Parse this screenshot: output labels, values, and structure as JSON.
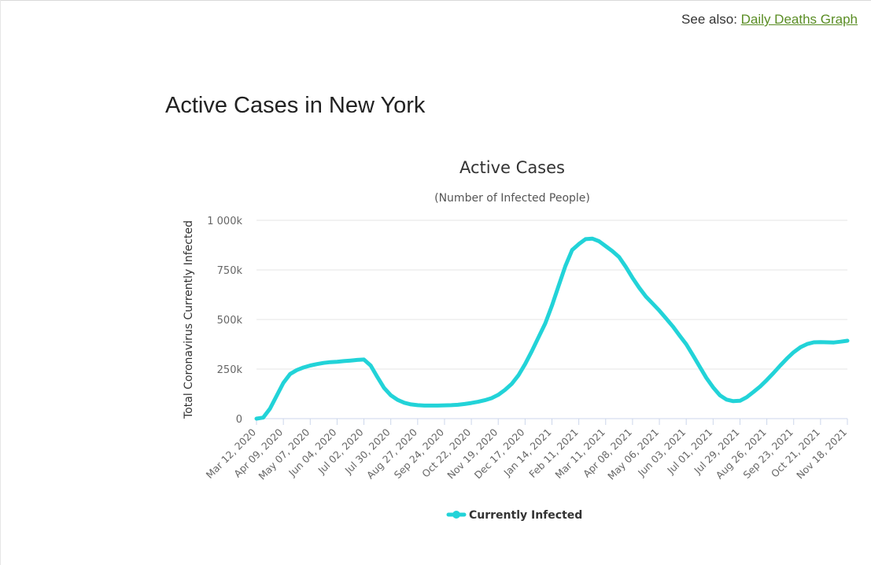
{
  "header": {
    "see_also_prefix": "See also:",
    "see_also_link": "Daily Deaths Graph",
    "link_color": "#5a8d24"
  },
  "page": {
    "title": "Active Cases in New York"
  },
  "chart_data": {
    "type": "line",
    "title": "Active Cases",
    "subtitle": "(Number of Infected People)",
    "xlabel": "",
    "ylabel": "Total Coronavirus Currently Infected",
    "ylim": [
      0,
      1000000
    ],
    "yticks": [
      0,
      250000,
      500000,
      750000,
      1000000
    ],
    "ytick_labels": [
      "0",
      "250k",
      "500k",
      "750k",
      "1 000k"
    ],
    "xticks": [
      "Mar 12, 2020",
      "Apr 09, 2020",
      "May 07, 2020",
      "Jun 04, 2020",
      "Jul 02, 2020",
      "Jul 30, 2020",
      "Aug 27, 2020",
      "Sep 24, 2020",
      "Oct 22, 2020",
      "Nov 19, 2020",
      "Dec 17, 2020",
      "Jan 14, 2021",
      "Feb 11, 2021",
      "Mar 11, 2021",
      "Apr 08, 2021",
      "May 06, 2021",
      "Jun 03, 2021",
      "Jul 01, 2021",
      "Jul 29, 2021",
      "Aug 26, 2021",
      "Sep 23, 2021",
      "Oct 21, 2021",
      "Nov 18, 2021"
    ],
    "grid": true,
    "legend_position": "bottom-center",
    "series": [
      {
        "name": "Currently Infected",
        "color": "#22d3d8",
        "x": [
          "Mar 12, 2020",
          "Mar 19, 2020",
          "Mar 26, 2020",
          "Apr 02, 2020",
          "Apr 09, 2020",
          "Apr 16, 2020",
          "Apr 23, 2020",
          "Apr 30, 2020",
          "May 07, 2020",
          "May 14, 2020",
          "May 21, 2020",
          "May 28, 2020",
          "Jun 04, 2020",
          "Jun 11, 2020",
          "Jun 18, 2020",
          "Jun 25, 2020",
          "Jul 02, 2020",
          "Jul 09, 2020",
          "Jul 16, 2020",
          "Jul 23, 2020",
          "Jul 30, 2020",
          "Aug 06, 2020",
          "Aug 13, 2020",
          "Aug 20, 2020",
          "Aug 27, 2020",
          "Sep 03, 2020",
          "Sep 10, 2020",
          "Sep 17, 2020",
          "Sep 24, 2020",
          "Oct 01, 2020",
          "Oct 08, 2020",
          "Oct 15, 2020",
          "Oct 22, 2020",
          "Oct 29, 2020",
          "Nov 05, 2020",
          "Nov 12, 2020",
          "Nov 19, 2020",
          "Nov 26, 2020",
          "Dec 03, 2020",
          "Dec 10, 2020",
          "Dec 17, 2020",
          "Dec 24, 2020",
          "Dec 31, 2020",
          "Jan 07, 2021",
          "Jan 14, 2021",
          "Jan 21, 2021",
          "Jan 28, 2021",
          "Feb 04, 2021",
          "Feb 11, 2021",
          "Feb 18, 2021",
          "Feb 25, 2021",
          "Mar 04, 2021",
          "Mar 11, 2021",
          "Mar 18, 2021",
          "Mar 25, 2021",
          "Apr 01, 2021",
          "Apr 08, 2021",
          "Apr 15, 2021",
          "Apr 22, 2021",
          "Apr 29, 2021",
          "May 06, 2021",
          "May 13, 2021",
          "May 20, 2021",
          "May 27, 2021",
          "Jun 03, 2021",
          "Jun 10, 2021",
          "Jun 17, 2021",
          "Jun 24, 2021",
          "Jul 01, 2021",
          "Jul 08, 2021",
          "Jul 15, 2021",
          "Jul 22, 2021",
          "Jul 29, 2021",
          "Aug 05, 2021",
          "Aug 12, 2021",
          "Aug 19, 2021",
          "Aug 26, 2021",
          "Sep 02, 2021",
          "Sep 09, 2021",
          "Sep 16, 2021",
          "Sep 23, 2021",
          "Sep 30, 2021",
          "Oct 07, 2021",
          "Oct 14, 2021",
          "Oct 21, 2021",
          "Oct 28, 2021",
          "Nov 04, 2021",
          "Nov 11, 2021",
          "Nov 18, 2021"
        ],
        "values": [
          0,
          5000,
          50000,
          115000,
          180000,
          225000,
          245000,
          258000,
          268000,
          275000,
          281000,
          285000,
          287000,
          290000,
          293000,
          296000,
          298000,
          268000,
          210000,
          155000,
          118000,
          95000,
          80000,
          72000,
          68000,
          66000,
          66000,
          66000,
          67000,
          68000,
          70000,
          74000,
          79000,
          85000,
          93000,
          103000,
          120000,
          145000,
          175000,
          218000,
          275000,
          340000,
          410000,
          480000,
          570000,
          670000,
          770000,
          850000,
          880000,
          905000,
          908000,
          895000,
          870000,
          845000,
          815000,
          765000,
          710000,
          660000,
          615000,
          580000,
          545000,
          505000,
          465000,
          420000,
          375000,
          320000,
          262000,
          205000,
          158000,
          118000,
          96000,
          88000,
          90000,
          108000,
          134000,
          162000,
          195000,
          230000,
          268000,
          303000,
          335000,
          360000,
          376000,
          385000,
          386000,
          385000,
          384000,
          388000,
          393000
        ]
      }
    ]
  }
}
